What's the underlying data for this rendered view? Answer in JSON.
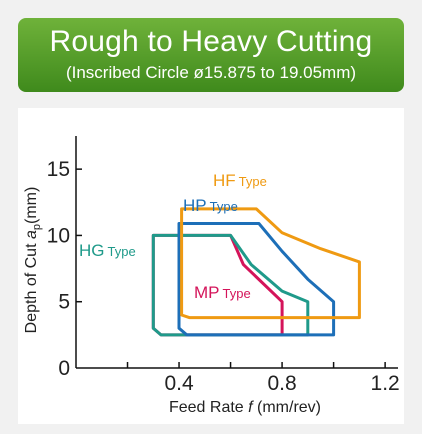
{
  "header": {
    "title": "Rough to Heavy Cutting",
    "subtitle": "(Inscribed Circle ø15.875 to 19.05mm)"
  },
  "chart_data": {
    "type": "area",
    "xlabel": {
      "prefix": "Feed Rate ",
      "var": "f",
      "suffix": " (mm/rev)"
    },
    "ylabel": {
      "prefix": "Depth of Cut ",
      "var": "a",
      "sub": "p",
      "suffix": "(mm)"
    },
    "xlim": [
      0,
      1.25
    ],
    "ylim": [
      0,
      17.5
    ],
    "xticks": [
      0.4,
      0.8,
      1.2
    ],
    "xticks_minor": [
      0.2,
      0.6,
      1.0
    ],
    "yticks": [
      0,
      5,
      10,
      15
    ],
    "grid": false,
    "series": [
      {
        "name": "HF",
        "suffix": "Type",
        "color": "#ef9a12",
        "outline": [
          [
            0.41,
            4.0
          ],
          [
            0.41,
            12.0
          ],
          [
            0.7,
            12.0
          ],
          [
            0.8,
            10.2
          ],
          [
            0.95,
            9.0
          ],
          [
            1.1,
            8.0
          ],
          [
            1.1,
            3.8
          ],
          [
            0.44,
            3.8
          ]
        ]
      },
      {
        "name": "HP",
        "suffix": "Type",
        "color": "#1d6fb8",
        "outline": [
          [
            0.4,
            3.0
          ],
          [
            0.4,
            10.9
          ],
          [
            0.71,
            10.9
          ],
          [
            0.8,
            8.8
          ],
          [
            0.9,
            6.7
          ],
          [
            1.0,
            5.0
          ],
          [
            1.0,
            2.5
          ],
          [
            0.43,
            2.5
          ]
        ]
      },
      {
        "name": "HG",
        "suffix": "Type",
        "color": "#1f9a8a",
        "outline": [
          [
            0.3,
            3.0
          ],
          [
            0.3,
            10.0
          ],
          [
            0.6,
            10.0
          ],
          [
            0.68,
            7.8
          ],
          [
            0.8,
            5.8
          ],
          [
            0.9,
            5.0
          ],
          [
            0.9,
            2.5
          ],
          [
            0.33,
            2.5
          ]
        ]
      },
      {
        "name": "MP",
        "suffix": "Type",
        "color": "#d4145a",
        "outline": [
          [
            0.3,
            3.0
          ],
          [
            0.3,
            10.0
          ],
          [
            0.6,
            10.0
          ],
          [
            0.65,
            7.8
          ],
          [
            0.8,
            5.0
          ],
          [
            0.8,
            2.5
          ],
          [
            0.33,
            2.5
          ]
        ]
      }
    ]
  }
}
